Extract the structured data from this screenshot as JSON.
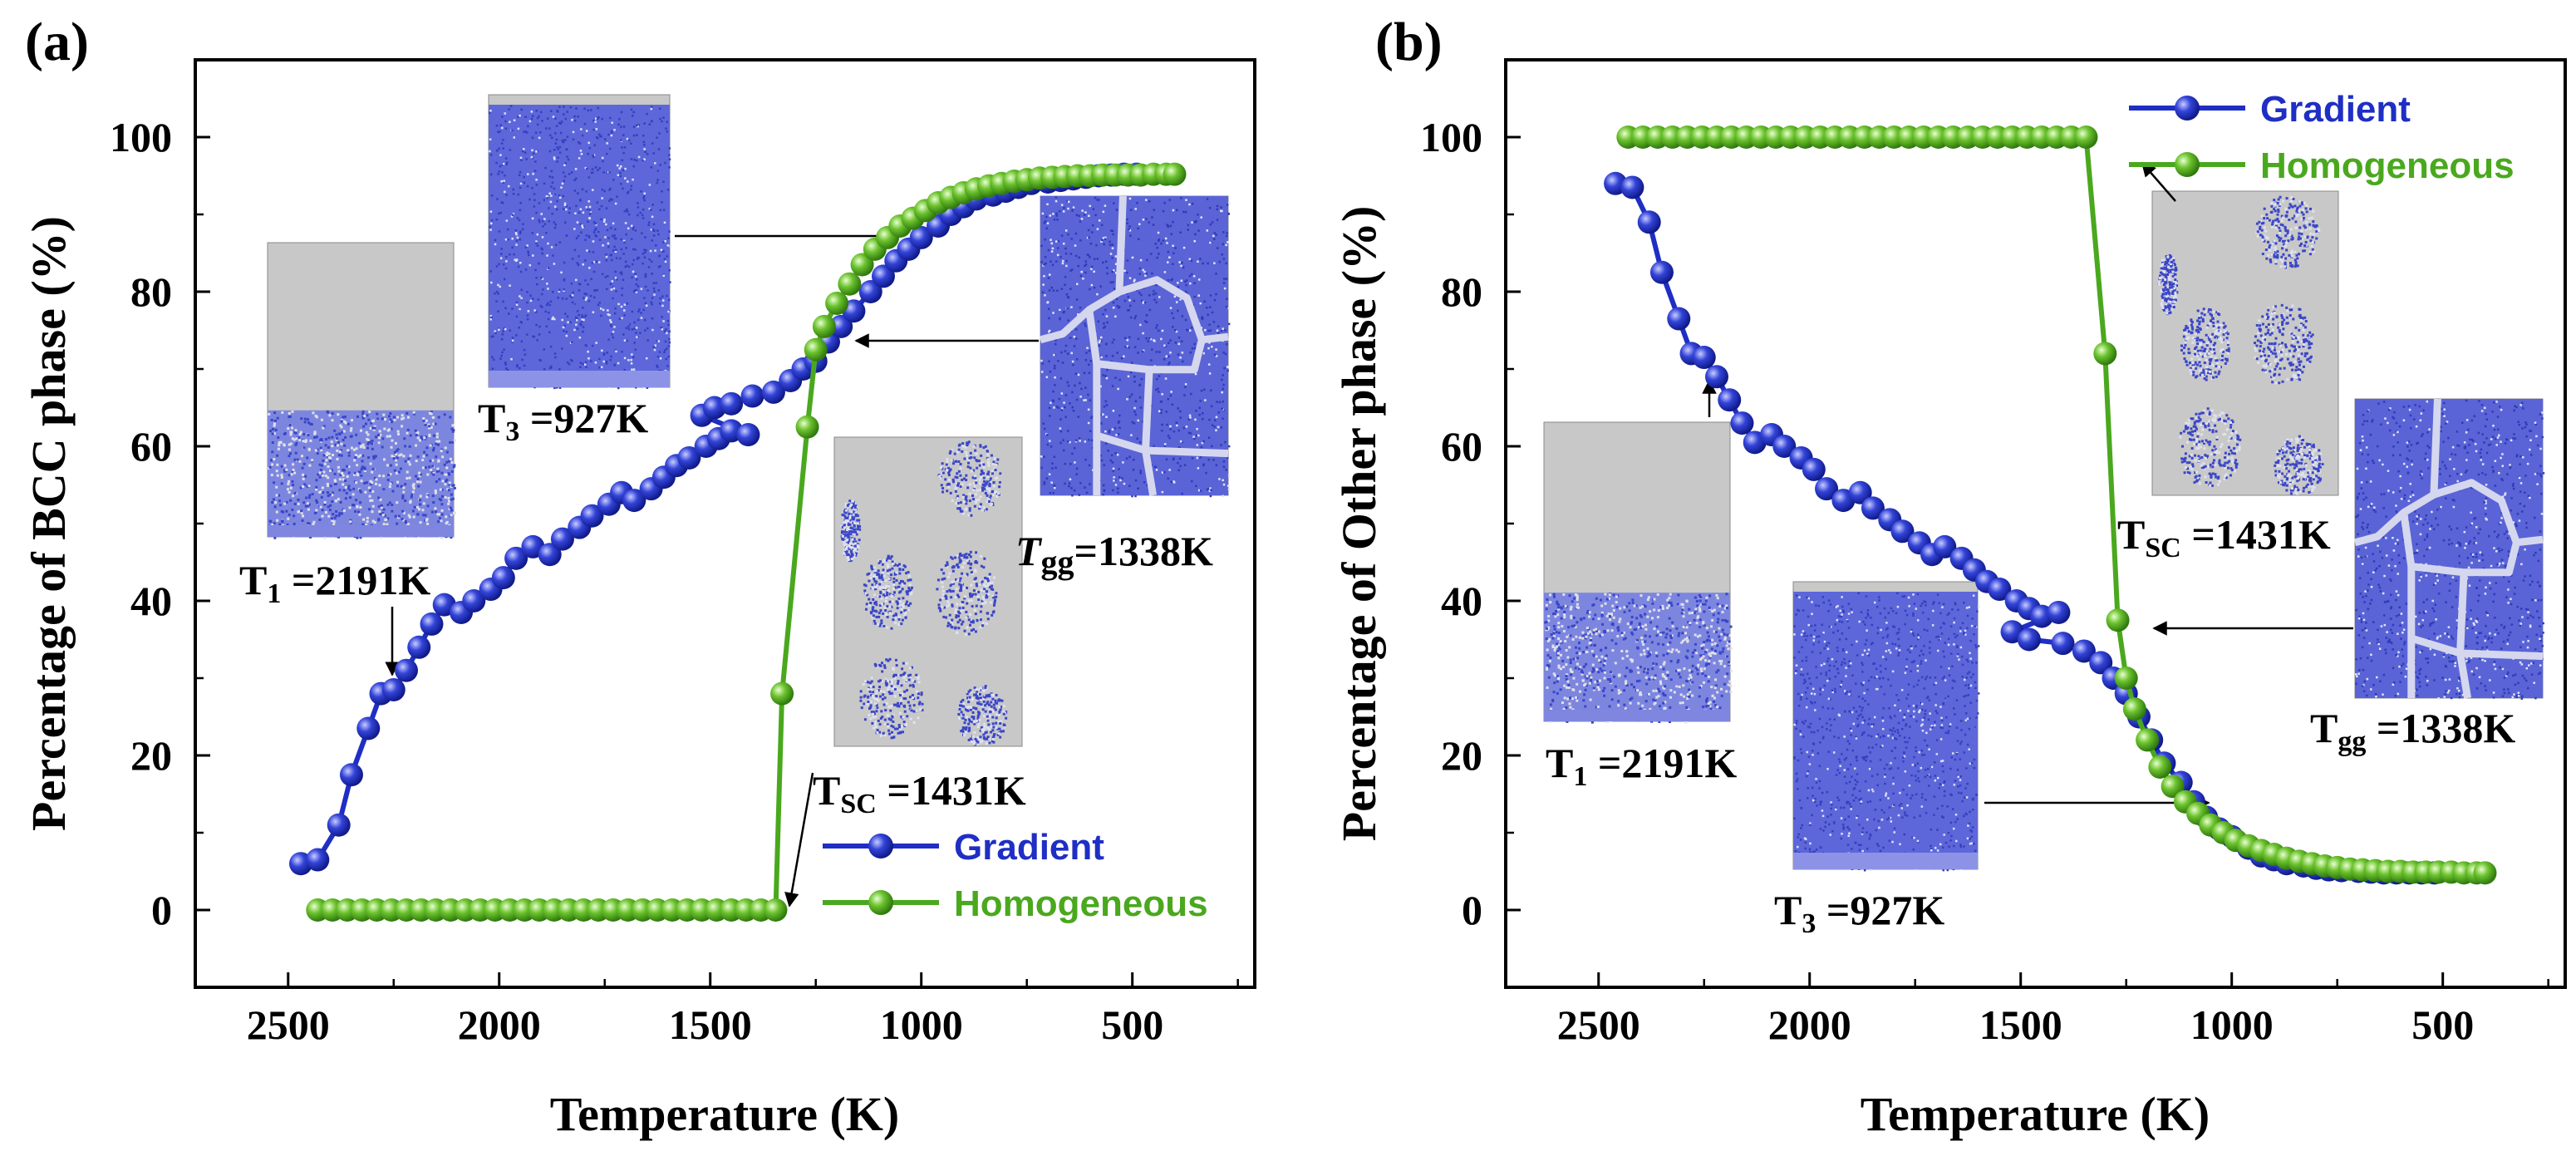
{
  "colors": {
    "gradient": "#1f2ec4",
    "homogeneous": "#4aa81e",
    "inset_bg": "#c8c8c8",
    "atoms": "#5561d6"
  },
  "chart_data": [
    {
      "type": "line",
      "panel": "(a)",
      "xlabel": "Temperature (K)",
      "ylabel": "Percentage of BCC phase (%)",
      "xlim": [
        2720,
        210
      ],
      "ylim": [
        -10,
        110
      ],
      "x_reversed": true,
      "xticks": [
        2500,
        2000,
        1500,
        1000,
        500
      ],
      "yticks": [
        0,
        20,
        40,
        60,
        80,
        100
      ],
      "legend_position": "bottom-right",
      "series": [
        {
          "name": "Gradient",
          "x": [
            2470,
            2430,
            2380,
            2350,
            2310,
            2280,
            2250,
            2220,
            2190,
            2160,
            2130,
            2090,
            2060,
            2020,
            1990,
            1960,
            1920,
            1880,
            1850,
            1810,
            1780,
            1740,
            1710,
            1680,
            1640,
            1610,
            1580,
            1550,
            1510,
            1480,
            1450,
            1410,
            1520,
            1490,
            1450,
            1400,
            1350,
            1310,
            1280,
            1250,
            1220,
            1190,
            1160,
            1120,
            1090,
            1060,
            1030,
            1000,
            960,
            930,
            900,
            870,
            830,
            800,
            770,
            740,
            700,
            670,
            640,
            610,
            580,
            550,
            520,
            490
          ],
          "y": [
            6,
            6.5,
            11,
            17.5,
            23.5,
            28,
            28.5,
            31,
            34,
            37,
            39.5,
            38.5,
            40,
            41.5,
            43,
            45.5,
            47,
            46,
            48,
            49.5,
            51,
            52.5,
            54,
            53,
            54.5,
            56,
            57.5,
            58.5,
            60,
            61,
            62,
            61.5,
            64,
            65,
            65.5,
            66.5,
            67,
            68.5,
            70,
            71,
            73.5,
            75.5,
            77.5,
            80,
            82,
            84,
            85.5,
            87,
            88.5,
            90,
            91,
            92,
            92.5,
            93,
            93.5,
            94,
            94.2,
            94.4,
            94.6,
            94.8,
            95,
            95.1,
            95.2,
            95.2
          ]
        },
        {
          "name": "Homogeneous",
          "x": [
            2430,
            2395,
            2360,
            2325,
            2290,
            2255,
            2220,
            2185,
            2150,
            2115,
            2080,
            2045,
            2010,
            1975,
            1940,
            1905,
            1870,
            1835,
            1800,
            1765,
            1730,
            1695,
            1660,
            1625,
            1590,
            1555,
            1520,
            1485,
            1450,
            1415,
            1380,
            1345,
            1330,
            1270,
            1250,
            1230,
            1200,
            1170,
            1140,
            1110,
            1080,
            1050,
            1020,
            990,
            960,
            930,
            900,
            870,
            840,
            810,
            780,
            750,
            720,
            690,
            660,
            630,
            600,
            570,
            540,
            510,
            480,
            450,
            420,
            400
          ],
          "y": [
            0,
            0,
            0,
            0,
            0,
            0,
            0,
            0,
            0,
            0,
            0,
            0,
            0,
            0,
            0,
            0,
            0,
            0,
            0,
            0,
            0,
            0,
            0,
            0,
            0,
            0,
            0,
            0,
            0,
            0,
            0,
            0,
            28,
            62.5,
            72.5,
            75.5,
            78.5,
            81,
            83.5,
            85.5,
            87,
            88.5,
            89.5,
            90.5,
            91.5,
            92.2,
            92.8,
            93.3,
            93.7,
            94,
            94.3,
            94.5,
            94.7,
            94.8,
            94.9,
            95,
            95,
            95.1,
            95.1,
            95.1,
            95.1,
            95.2,
            95.2,
            95.2
          ]
        }
      ],
      "annotations": [
        {
          "text_main": "T",
          "text_sub": "1",
          "text_rest": " =2191K"
        },
        {
          "text_main": "T",
          "text_sub": "3",
          "text_rest": " =927K"
        },
        {
          "text_main": "T",
          "text_sub": "gg",
          "text_rest": "=1338K"
        },
        {
          "text_main": "T",
          "text_sub": "SC",
          "text_rest": " =1431K"
        }
      ]
    },
    {
      "type": "line",
      "panel": "(b)",
      "xlabel": "Temperature (K)",
      "ylabel": "Percentage of Other phase (%)",
      "xlim": [
        2720,
        210
      ],
      "ylim": [
        -10,
        110
      ],
      "x_reversed": true,
      "xticks": [
        2500,
        2000,
        1500,
        1000,
        500
      ],
      "yticks": [
        0,
        20,
        40,
        60,
        80,
        100
      ],
      "legend_position": "top-right",
      "series": [
        {
          "name": "Gradient",
          "x": [
            2460,
            2420,
            2380,
            2350,
            2310,
            2280,
            2250,
            2220,
            2190,
            2160,
            2130,
            2090,
            2060,
            2020,
            1990,
            1960,
            1920,
            1880,
            1850,
            1810,
            1780,
            1740,
            1710,
            1680,
            1640,
            1610,
            1580,
            1550,
            1510,
            1480,
            1450,
            1410,
            1520,
            1480,
            1400,
            1350,
            1310,
            1280,
            1250,
            1220,
            1190,
            1160,
            1120,
            1090,
            1060,
            1030,
            1000,
            960,
            930,
            900,
            870,
            830,
            800,
            770,
            740,
            700,
            670,
            640,
            610,
            580,
            550,
            520
          ],
          "y": [
            94,
            93.5,
            89,
            82.5,
            76.5,
            72,
            71.5,
            69,
            66,
            63,
            60.5,
            61.5,
            60,
            58.5,
            57,
            54.5,
            53,
            54,
            52,
            50.5,
            49,
            47.5,
            46,
            47,
            45.5,
            44,
            42.5,
            41.5,
            40,
            39,
            38,
            38.5,
            36,
            35,
            34.5,
            33.5,
            32,
            30,
            28,
            25,
            22,
            19,
            16.5,
            14,
            12,
            10.5,
            9.5,
            8,
            7,
            6.5,
            6,
            5.7,
            5.4,
            5.2,
            5.1,
            5,
            4.9,
            4.8,
            4.8,
            4.8,
            4.8,
            4.8
          ]
        },
        {
          "name": "Homogeneous",
          "x": [
            2430,
            2395,
            2360,
            2325,
            2290,
            2255,
            2220,
            2185,
            2150,
            2115,
            2080,
            2045,
            2010,
            1975,
            1940,
            1905,
            1870,
            1835,
            1800,
            1765,
            1730,
            1695,
            1660,
            1625,
            1590,
            1555,
            1520,
            1485,
            1450,
            1415,
            1380,
            1345,
            1300,
            1270,
            1250,
            1230,
            1200,
            1170,
            1140,
            1110,
            1080,
            1050,
            1020,
            990,
            960,
            930,
            900,
            870,
            840,
            810,
            780,
            750,
            720,
            690,
            660,
            630,
            600,
            570,
            540,
            510,
            480,
            450,
            420,
            400
          ],
          "y": [
            100,
            100,
            100,
            100,
            100,
            100,
            100,
            100,
            100,
            100,
            100,
            100,
            100,
            100,
            100,
            100,
            100,
            100,
            100,
            100,
            100,
            100,
            100,
            100,
            100,
            100,
            100,
            100,
            100,
            100,
            100,
            100,
            72,
            37.5,
            30,
            26,
            22,
            18.5,
            16,
            14,
            12.5,
            11,
            10,
            9,
            8.3,
            7.7,
            7.2,
            6.7,
            6.3,
            6,
            5.7,
            5.5,
            5.3,
            5.2,
            5.1,
            5,
            5,
            4.9,
            4.9,
            4.9,
            4.9,
            4.8,
            4.8,
            4.8
          ]
        }
      ],
      "annotations": [
        {
          "text_main": "T",
          "text_sub": "1",
          "text_rest": " =2191K"
        },
        {
          "text_main": "T",
          "text_sub": "3",
          "text_rest": " =927K"
        },
        {
          "text_main": "T",
          "text_sub": "gg",
          "text_rest": " =1338K"
        },
        {
          "text_main": "T",
          "text_sub": "SC",
          "text_rest": " =1431K"
        }
      ]
    }
  ]
}
